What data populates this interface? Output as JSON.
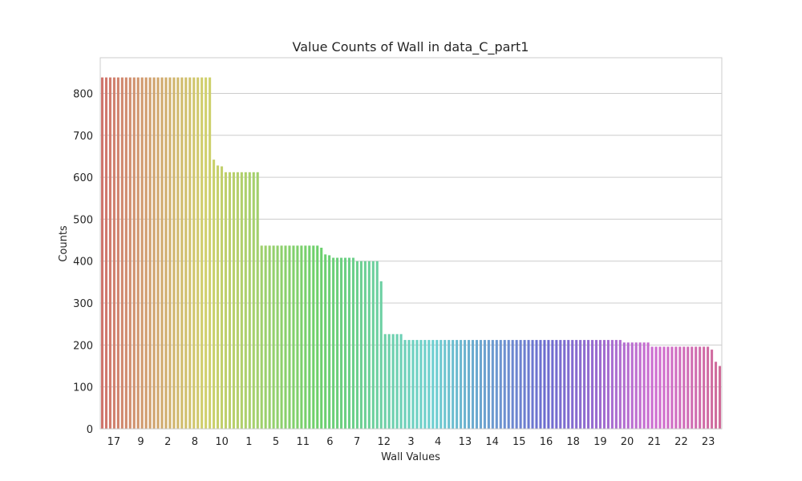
{
  "chart_data": {
    "type": "bar",
    "title": "Value Counts of Wall in data_C_part1",
    "xlabel": "Wall Values",
    "ylabel": "Counts",
    "ylim": [
      0,
      885
    ],
    "yticks": [
      0,
      100,
      200,
      300,
      400,
      500,
      600,
      700,
      800
    ],
    "grid": true,
    "tick_labels_visible": [
      "17",
      "9",
      "2",
      "8",
      "10",
      "1",
      "5",
      "11",
      "6",
      "7",
      "12",
      "3",
      "4",
      "13",
      "14",
      "15",
      "16",
      "18",
      "19",
      "20",
      "21",
      "22",
      "23"
    ],
    "values": [
      838,
      838,
      838,
      838,
      838,
      838,
      838,
      838,
      838,
      838,
      838,
      838,
      838,
      838,
      838,
      838,
      838,
      838,
      838,
      838,
      838,
      838,
      838,
      838,
      838,
      838,
      838,
      838,
      642,
      628,
      626,
      612,
      612,
      612,
      612,
      612,
      612,
      612,
      612,
      612,
      437,
      437,
      437,
      437,
      437,
      437,
      437,
      437,
      437,
      437,
      437,
      437,
      437,
      437,
      437,
      432,
      416,
      414,
      408,
      408,
      408,
      408,
      408,
      408,
      400,
      400,
      400,
      400,
      400,
      400,
      352,
      226,
      226,
      226,
      226,
      226,
      212,
      212,
      212,
      212,
      212,
      212,
      212,
      212,
      212,
      212,
      212,
      212,
      212,
      212,
      212,
      212,
      212,
      212,
      212,
      212,
      212,
      212,
      212,
      212,
      212,
      212,
      212,
      212,
      212,
      212,
      212,
      212,
      212,
      212,
      212,
      212,
      212,
      212,
      212,
      212,
      212,
      212,
      212,
      212,
      212,
      212,
      212,
      212,
      212,
      212,
      212,
      212,
      212,
      212,
      212,
      206,
      206,
      206,
      206,
      206,
      206,
      206,
      196,
      196,
      196,
      196,
      196,
      196,
      196,
      196,
      196,
      196,
      196,
      196,
      196,
      196,
      196,
      189,
      160,
      150
    ]
  }
}
